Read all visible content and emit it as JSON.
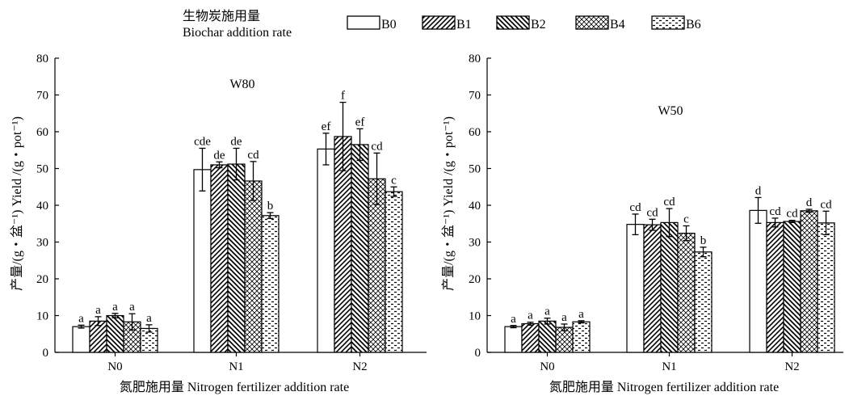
{
  "legend": {
    "title_zh": "生物炭施用量",
    "title_en": "Biochar addition rate"
  },
  "chart_data": [
    {
      "type": "bar",
      "title": "W80",
      "ylabel": "产量/(g・盆⁻¹) Yield /(g・pot⁻¹)",
      "xlabel": "氮肥施用量 Nitrogen fertilizer addition rate",
      "categories": [
        "N0",
        "N1",
        "N2"
      ],
      "ylim": [
        0,
        80
      ],
      "yticks": [
        0,
        10,
        20,
        30,
        40,
        50,
        60,
        70,
        80
      ],
      "series": [
        {
          "name": "B0",
          "values": [
            7.0,
            49.7,
            55.3
          ],
          "errors": [
            0.4,
            5.8,
            4.3
          ],
          "labels": [
            "a",
            "cde",
            "ef"
          ]
        },
        {
          "name": "B1",
          "values": [
            8.5,
            51.0,
            58.7
          ],
          "errors": [
            1.2,
            0.8,
            9.3
          ],
          "labels": [
            "a",
            "de",
            "f"
          ]
        },
        {
          "name": "B2",
          "values": [
            10.0,
            51.2,
            56.5
          ],
          "errors": [
            0.6,
            4.3,
            4.3
          ],
          "labels": [
            "a",
            "de",
            "ef"
          ]
        },
        {
          "name": "B4",
          "values": [
            8.3,
            46.6,
            47.2
          ],
          "errors": [
            2.2,
            5.3,
            7.0
          ],
          "labels": [
            "a",
            "cd",
            "cd"
          ]
        },
        {
          "name": "B6",
          "values": [
            6.5,
            37.2,
            43.7
          ],
          "errors": [
            1.0,
            0.8,
            1.3
          ],
          "labels": [
            "a",
            "b",
            "c"
          ]
        }
      ]
    },
    {
      "type": "bar",
      "title": "W50",
      "ylabel": "产量/(g・盆⁻¹) Yield /(g・pot⁻¹)",
      "xlabel": "氮肥施用量 Nitrogen fertilizer addition rate",
      "categories": [
        "N0",
        "N1",
        "N2"
      ],
      "ylim": [
        0,
        80
      ],
      "yticks": [
        0,
        10,
        20,
        30,
        40,
        50,
        60,
        70,
        80
      ],
      "series": [
        {
          "name": "B0",
          "values": [
            7.0,
            34.8,
            38.6
          ],
          "errors": [
            0.3,
            2.8,
            3.5
          ],
          "labels": [
            "a",
            "cd",
            "d"
          ]
        },
        {
          "name": "B1",
          "values": [
            7.8,
            34.7,
            35.3
          ],
          "errors": [
            0.4,
            1.5,
            1.2
          ],
          "labels": [
            "a",
            "cd",
            "cd"
          ]
        },
        {
          "name": "B2",
          "values": [
            8.5,
            35.3,
            35.6
          ],
          "errors": [
            0.8,
            3.8,
            0.3
          ],
          "labels": [
            "a",
            "cd",
            "cd"
          ]
        },
        {
          "name": "B4",
          "values": [
            6.8,
            32.4,
            38.5
          ],
          "errors": [
            0.9,
            2.0,
            0.4
          ],
          "labels": [
            "a",
            "c",
            "d"
          ]
        },
        {
          "name": "B6",
          "values": [
            8.3,
            27.3,
            35.2
          ],
          "errors": [
            0.3,
            1.3,
            3.2
          ],
          "labels": [
            "a",
            "b",
            "cd"
          ]
        }
      ]
    }
  ]
}
